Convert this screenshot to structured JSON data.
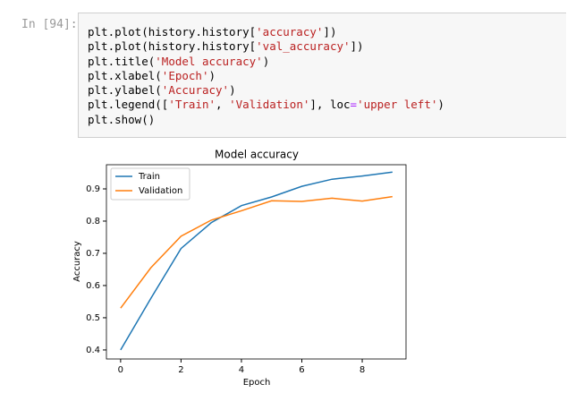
{
  "prompt": "In [94]:",
  "code": {
    "lines": [
      {
        "tokens": [
          {
            "text": "plt.plot(history.history["
          },
          {
            "text": "'accuracy'",
            "color": "#ba2121"
          },
          {
            "text": "])"
          }
        ]
      },
      {
        "tokens": [
          {
            "text": "plt.plot(history.history["
          },
          {
            "text": "'val_accuracy'",
            "color": "#ba2121"
          },
          {
            "text": "])"
          }
        ]
      },
      {
        "tokens": [
          {
            "text": "plt.title("
          },
          {
            "text": "'Model accuracy'",
            "color": "#ba2121"
          },
          {
            "text": ")"
          }
        ]
      },
      {
        "tokens": [
          {
            "text": "plt.xlabel("
          },
          {
            "text": "'Epoch'",
            "color": "#ba2121"
          },
          {
            "text": ")"
          }
        ]
      },
      {
        "tokens": [
          {
            "text": "plt.ylabel("
          },
          {
            "text": "'Accuracy'",
            "color": "#ba2121"
          },
          {
            "text": ")"
          }
        ]
      },
      {
        "tokens": [
          {
            "text": "plt.legend(["
          },
          {
            "text": "'Train'",
            "color": "#ba2121"
          },
          {
            "text": ", "
          },
          {
            "text": "'Validation'",
            "color": "#ba2121"
          },
          {
            "text": "], loc"
          },
          {
            "text": "=",
            "color": "#aa22ff"
          },
          {
            "text": "'upper left'",
            "color": "#ba2121"
          },
          {
            "text": ")"
          }
        ]
      },
      {
        "tokens": [
          {
            "text": "plt.show()"
          }
        ]
      }
    ]
  },
  "chart_data": {
    "type": "line",
    "title": "Model accuracy",
    "x_label": "Epoch",
    "y_label": "Accuracy",
    "x": [
      0,
      1,
      2,
      3,
      4,
      5,
      6,
      7,
      8,
      9
    ],
    "series": [
      {
        "name": "Train",
        "color": "#1f77b4",
        "values": [
          0.4,
          0.56,
          0.715,
          0.795,
          0.848,
          0.875,
          0.908,
          0.93,
          0.94,
          0.952
        ]
      },
      {
        "name": "Validation",
        "color": "#ff7f0e",
        "values": [
          0.53,
          0.655,
          0.753,
          0.803,
          0.832,
          0.863,
          0.861,
          0.871,
          0.862,
          0.876
        ]
      }
    ],
    "xlim": [
      -0.47,
      9.45
    ],
    "ylim": [
      0.372,
      0.975
    ],
    "xticks": [
      0,
      2,
      4,
      6,
      8
    ],
    "yticks": [
      0.4,
      0.5,
      0.6,
      0.7,
      0.8,
      0.9
    ],
    "legend": "upper left"
  }
}
